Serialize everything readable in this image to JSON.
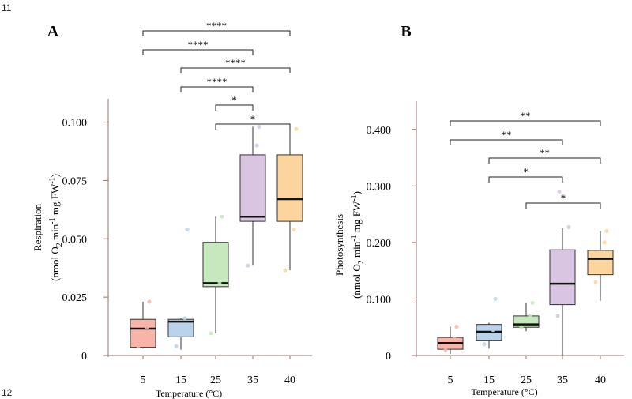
{
  "line_numbers": {
    "top": "11",
    "bottom": "12"
  },
  "colors": {
    "5": "#f8b4a8",
    "15": "#b9d3ec",
    "25": "#c6e8bd",
    "35": "#d9c4e2",
    "40": "#fbd49e",
    "axis": "#9a6d6d"
  },
  "chart_data": [
    {
      "type": "box",
      "panel_label": "A",
      "ylabel_line1": "Respiration",
      "ylabel_line2": "(nmol O2 min-1 mg FW-1)",
      "xlabel": "Temperature (°C)",
      "categories": [
        "5",
        "15",
        "25",
        "35",
        "40"
      ],
      "ylim": [
        0,
        0.11
      ],
      "yticks": [
        {
          "value": 0,
          "label": "0"
        },
        {
          "value": 0.025,
          "label": "0.025"
        },
        {
          "value": 0.05,
          "label": "0.050"
        },
        {
          "value": 0.075,
          "label": "0.075"
        },
        {
          "value": 0.1,
          "label": "0.100"
        }
      ],
      "boxes": [
        {
          "category": "5",
          "whisker_low": 0.003,
          "q1": 0.0035,
          "median": 0.0115,
          "q3": 0.0155,
          "whisker_high": 0.023,
          "points": [
            0.004,
            0.012,
            0.023
          ]
        },
        {
          "category": "15",
          "whisker_low": 0.0025,
          "q1": 0.008,
          "median": 0.0145,
          "q3": 0.0155,
          "whisker_high": 0.016,
          "points": [
            0.004,
            0.016,
            0.054
          ]
        },
        {
          "category": "25",
          "whisker_low": 0.0095,
          "q1": 0.0295,
          "median": 0.031,
          "q3": 0.0485,
          "whisker_high": 0.0595,
          "points": [
            0.0095,
            0.031,
            0.0595
          ]
        },
        {
          "category": "35",
          "whisker_low": 0.0385,
          "q1": 0.0575,
          "median": 0.0595,
          "q3": 0.086,
          "whisker_high": 0.098,
          "points": [
            0.0385,
            0.09,
            0.098
          ]
        },
        {
          "category": "40",
          "whisker_low": 0.0365,
          "q1": 0.0575,
          "median": 0.067,
          "q3": 0.086,
          "whisker_high": 0.097,
          "points": [
            0.0365,
            0.054,
            0.097
          ]
        }
      ],
      "significance": [
        {
          "from": "5",
          "to": "40",
          "label": "****"
        },
        {
          "from": "5",
          "to": "35",
          "label": "****"
        },
        {
          "from": "15",
          "to": "40",
          "label": "****"
        },
        {
          "from": "15",
          "to": "35",
          "label": "****"
        },
        {
          "from": "25",
          "to": "35",
          "label": "*"
        },
        {
          "from": "25",
          "to": "40",
          "label": "*"
        }
      ]
    },
    {
      "type": "box",
      "panel_label": "B",
      "ylabel_line1": "Photosynthesis",
      "ylabel_line2": "(nmol O2 min-1 mg FW-1)",
      "xlabel": "Temperature (°C)",
      "categories": [
        "5",
        "15",
        "25",
        "35",
        "40"
      ],
      "ylim": [
        0,
        0.45
      ],
      "yticks": [
        {
          "value": 0,
          "label": "0"
        },
        {
          "value": 0.1,
          "label": "0.100"
        },
        {
          "value": 0.2,
          "label": "0.200"
        },
        {
          "value": 0.3,
          "label": "0.300"
        },
        {
          "value": 0.4,
          "label": "0.400"
        }
      ],
      "boxes": [
        {
          "category": "5",
          "whisker_low": 0.003,
          "q1": 0.011,
          "median": 0.022,
          "q3": 0.032,
          "whisker_high": 0.051,
          "points": [
            0.01,
            0.03,
            0.051
          ]
        },
        {
          "category": "15",
          "whisker_low": 0.012,
          "q1": 0.027,
          "median": 0.042,
          "q3": 0.055,
          "whisker_high": 0.058,
          "points": [
            0.02,
            0.045,
            0.1
          ]
        },
        {
          "category": "25",
          "whisker_low": 0.043,
          "q1": 0.05,
          "median": 0.055,
          "q3": 0.07,
          "whisker_high": 0.093,
          "points": [
            0.05,
            0.07,
            0.093
          ]
        },
        {
          "category": "35",
          "whisker_low": 0.0,
          "q1": 0.09,
          "median": 0.127,
          "q3": 0.187,
          "whisker_high": 0.225,
          "points": [
            0.07,
            0.15,
            0.227,
            0.29
          ]
        },
        {
          "category": "40",
          "whisker_low": 0.097,
          "q1": 0.143,
          "median": 0.171,
          "q3": 0.186,
          "whisker_high": 0.22,
          "points": [
            0.13,
            0.2,
            0.22
          ]
        }
      ],
      "significance": [
        {
          "from": "5",
          "to": "40",
          "label": "**"
        },
        {
          "from": "5",
          "to": "35",
          "label": "**"
        },
        {
          "from": "15",
          "to": "40",
          "label": "**"
        },
        {
          "from": "15",
          "to": "35",
          "label": "*"
        },
        {
          "from": "25",
          "to": "40",
          "label": "*"
        }
      ]
    }
  ]
}
